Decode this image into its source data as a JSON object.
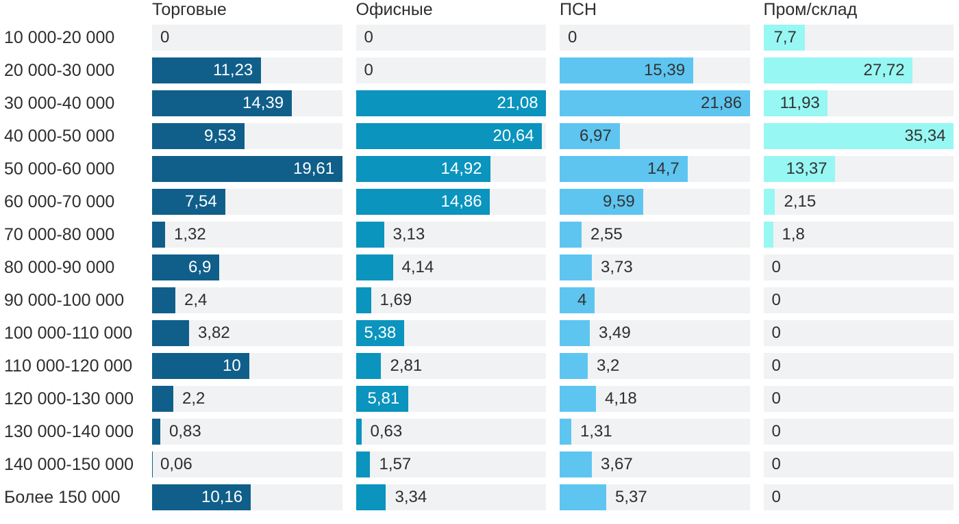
{
  "chart_data": {
    "type": "bar",
    "orientation": "horizontal",
    "title": "",
    "normalization": "per-series-max",
    "grid": false,
    "legend_position": "column-headers",
    "background": "#ffffff",
    "track_color": "#f1f2f3",
    "category_label_color": "#2e2e2e",
    "header_color": "#2e2e2e",
    "outside_label_color": "#2e2e2e",
    "categories": [
      "10 000-20 000",
      "20 000-30 000",
      "30 000-40 000",
      "40 000-50 000",
      "50 000-60 000",
      "60 000-70 000",
      "70 000-80 000",
      "80 000-90 000",
      "90 000-100 000",
      "100 000-110 000",
      "110 000-120 000",
      "120 000-130 000",
      "130 000-140 000",
      "140 000-150 000",
      "Более 150 000"
    ],
    "series": [
      {
        "name": "Торговые",
        "color": "#105f8a",
        "inside_label_color": "#ffffff",
        "values": [
          0,
          11.23,
          14.39,
          9.53,
          19.61,
          7.54,
          1.32,
          6.9,
          2.4,
          3.82,
          10,
          2.2,
          0.83,
          0.06,
          10.16
        ],
        "labels": [
          "0",
          "11,23",
          "14,39",
          "9,53",
          "19,61",
          "7,54",
          "1,32",
          "6,9",
          "2,4",
          "3,82",
          "10",
          "2,2",
          "0,83",
          "0,06",
          "10,16"
        ]
      },
      {
        "name": "Офисные",
        "color": "#0a94be",
        "inside_label_color": "#ffffff",
        "values": [
          0,
          0,
          21.08,
          20.64,
          14.92,
          14.86,
          3.13,
          4.14,
          1.69,
          5.38,
          2.81,
          5.81,
          0.63,
          1.57,
          3.34
        ],
        "labels": [
          "0",
          "0",
          "21,08",
          "20,64",
          "14,92",
          "14,86",
          "3,13",
          "4,14",
          "1,69",
          "5,38",
          "2,81",
          "5,81",
          "0,63",
          "1,57",
          "3,34"
        ]
      },
      {
        "name": "ПСН",
        "color": "#5ec5f1",
        "inside_label_color": "#333333",
        "values": [
          0,
          15.39,
          21.86,
          6.97,
          14.7,
          9.59,
          2.55,
          3.73,
          4,
          3.49,
          3.2,
          4.18,
          1.31,
          3.67,
          5.37
        ],
        "labels": [
          "0",
          "15,39",
          "21,86",
          "6,97",
          "14,7",
          "9,59",
          "2,55",
          "3,73",
          "4",
          "3,49",
          "3,2",
          "4,18",
          "1,31",
          "3,67",
          "5,37"
        ]
      },
      {
        "name": "Пром/склад",
        "color": "#97f7f3",
        "inside_label_color": "#333333",
        "values": [
          7.7,
          27.72,
          11.93,
          35.34,
          13.37,
          2.15,
          1.8,
          0,
          0,
          0,
          0,
          0,
          0,
          0,
          0
        ],
        "labels": [
          "7,7",
          "27,72",
          "11,93",
          "35,34",
          "13,37",
          "2,15",
          "1,8",
          "0",
          "0",
          "0",
          "0",
          "0",
          "0",
          "0",
          "0"
        ]
      }
    ]
  }
}
